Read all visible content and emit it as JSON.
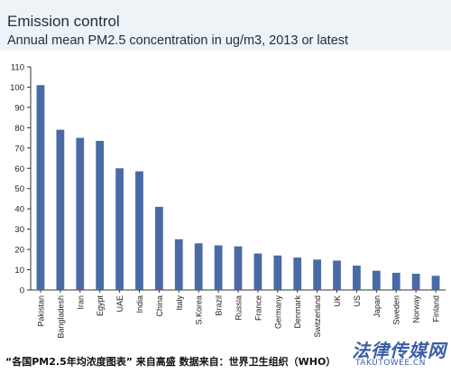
{
  "header": {
    "title": "Emission control",
    "subtitle": "Annual mean PM2.5 concentration in ug/m3, 2013 or latest"
  },
  "chart_data": {
    "type": "bar",
    "title": "Emission control",
    "subtitle": "Annual mean PM2.5 concentration in ug/m3, 2013 or latest",
    "xlabel": "",
    "ylabel": "",
    "ylim": [
      0,
      110
    ],
    "yticks": [
      0,
      10,
      20,
      30,
      40,
      50,
      60,
      70,
      80,
      90,
      100,
      110
    ],
    "grid": false,
    "bar_color": "#4a6aa5",
    "categories": [
      "Pakistan",
      "Bangladesh",
      "Iran",
      "Egypt",
      "UAE",
      "India",
      "China",
      "Italy",
      "S.Korea",
      "Brazil",
      "Russia",
      "France",
      "Germany",
      "Denmark",
      "Switzerland",
      "UK",
      "US",
      "Japan",
      "Sweden",
      "Norway",
      "Finland"
    ],
    "values": [
      101,
      79,
      75,
      73.5,
      60,
      58.5,
      41,
      25,
      23,
      22,
      21.5,
      18,
      17,
      16,
      15,
      14.5,
      12,
      9.5,
      8.5,
      8,
      7
    ]
  },
  "footer": {
    "note": "“各国PM2.5年均浓度图表” 来自高盛   数据来自：世界卫生组织（WHO）"
  },
  "watermark": {
    "main": "法律传媒网",
    "sub": "TAKUTOWEE.CN"
  }
}
